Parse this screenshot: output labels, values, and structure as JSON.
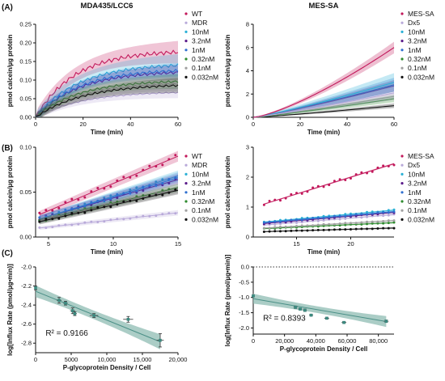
{
  "panel_labels": [
    "(A)",
    "(B)",
    "(C)"
  ],
  "colors": {
    "WT": "#c2185b",
    "MDR": "#b8a9d9",
    "10nM": "#2ab0d6",
    "3.2nM": "#5a1a8a",
    "1nM": "#2f6fcf",
    "0.32nM": "#2e8b2e",
    "0.1nM": "#a0a0a0",
    "0.032nM": "#111111",
    "MES-SA": "#c2185b",
    "Dx5": "#b8a9d9",
    "band": "#8fbcb3",
    "fitline": "#4a8f86",
    "marker": "#3c8a80"
  },
  "chart_data": [
    {
      "type": "line",
      "panel": "(A)",
      "title": "MDA435/LCC6",
      "xlabel": "Time (min)",
      "ylabel": "pmol calcein/µg protein",
      "xlim": [
        0,
        60
      ],
      "ylim": [
        0,
        0.25
      ],
      "xticks": [
        0,
        20,
        40,
        60
      ],
      "yticks": [
        0.0,
        0.05,
        0.1,
        0.15,
        0.2,
        0.25
      ],
      "ytick_labels": [
        "0.00",
        "0.05",
        "0.10",
        "0.15",
        "0.20",
        "0.25"
      ],
      "legend_position": "right",
      "series": [
        {
          "name": "WT",
          "color": "#c2185b",
          "ymax": 0.18,
          "k": 0.06,
          "band": 0.03
        },
        {
          "name": "MDR",
          "color": "#b8a9d9",
          "ymax": 0.07,
          "k": 0.05,
          "band": 0.015
        },
        {
          "name": "10nM",
          "color": "#2ab0d6",
          "ymax": 0.145,
          "k": 0.055,
          "band": 0.03
        },
        {
          "name": "3.2nM",
          "color": "#5a1a8a",
          "ymax": 0.125,
          "k": 0.055,
          "band": 0.02
        },
        {
          "name": "1nM",
          "color": "#2f6fcf",
          "ymax": 0.13,
          "k": 0.055,
          "band": 0.02
        },
        {
          "name": "0.32nM",
          "color": "#2e8b2e",
          "ymax": 0.1,
          "k": 0.055,
          "band": 0.02
        },
        {
          "name": "0.1nM",
          "color": "#a0a0a0",
          "ymax": 0.095,
          "k": 0.05,
          "band": 0.02
        },
        {
          "name": "0.032nM",
          "color": "#111111",
          "ymax": 0.09,
          "k": 0.05,
          "band": 0.02
        }
      ]
    },
    {
      "type": "line",
      "panel": "(A)",
      "title": "MES-SA",
      "xlabel": "Time (min)",
      "ylabel": "pmol calcein/µg protein",
      "xlim": [
        0,
        60
      ],
      "ylim": [
        0,
        8
      ],
      "xticks": [
        0,
        20,
        40,
        60
      ],
      "yticks": [
        0,
        2,
        4,
        6,
        8
      ],
      "ytick_labels": [
        "0",
        "2",
        "4",
        "6",
        "8"
      ],
      "legend_position": "right",
      "series": [
        {
          "name": "MES-SA",
          "color": "#c2185b",
          "end": 6.0,
          "p": 1.35,
          "band": 0.5
        },
        {
          "name": "Dx5",
          "color": "#b8a9d9",
          "end": 2.1,
          "p": 1.15,
          "band": 0.6
        },
        {
          "name": "10nM",
          "color": "#2ab0d6",
          "end": 3.0,
          "p": 1.15,
          "band": 0.8
        },
        {
          "name": "3.2nM",
          "color": "#5a1a8a",
          "end": 2.7,
          "p": 1.15,
          "band": 0.5
        },
        {
          "name": "1nM",
          "color": "#2f6fcf",
          "end": 2.8,
          "p": 1.15,
          "band": 0.6
        },
        {
          "name": "0.32nM",
          "color": "#2e8b2e",
          "end": 1.6,
          "p": 1.15,
          "band": 0.3
        },
        {
          "name": "0.1nM",
          "color": "#a0a0a0",
          "end": 1.8,
          "p": 1.15,
          "band": 0.3
        },
        {
          "name": "0.032nM",
          "color": "#111111",
          "end": 1.0,
          "p": 1.15,
          "band": 0.2
        }
      ]
    },
    {
      "type": "scatter",
      "panel": "(B)",
      "title": "",
      "xlabel": "Time (min)",
      "ylabel": "pmol calcein/µg protein",
      "xlim": [
        4,
        15
      ],
      "ylim": [
        0,
        0.1
      ],
      "xticks": [
        5,
        10,
        15
      ],
      "yticks": [
        0.0,
        0.05,
        0.1
      ],
      "ytick_labels": [
        "0.00",
        "0.05",
        "0.10"
      ],
      "legend_position": "right",
      "series": [
        {
          "name": "WT",
          "color": "#c2185b",
          "y0": 0.025,
          "y1": 0.09,
          "band": 0.004
        },
        {
          "name": "MDR",
          "color": "#b8a9d9",
          "y0": 0.01,
          "y1": 0.027,
          "band": 0.002
        },
        {
          "name": "10nM",
          "color": "#2ab0d6",
          "y0": 0.02,
          "y1": 0.068,
          "band": 0.004
        },
        {
          "name": "3.2nM",
          "color": "#5a1a8a",
          "y0": 0.02,
          "y1": 0.064,
          "band": 0.004
        },
        {
          "name": "1nM",
          "color": "#2f6fcf",
          "y0": 0.02,
          "y1": 0.066,
          "band": 0.004
        },
        {
          "name": "0.32nM",
          "color": "#2e8b2e",
          "y0": 0.018,
          "y1": 0.055,
          "band": 0.003
        },
        {
          "name": "0.1nM",
          "color": "#a0a0a0",
          "y0": 0.018,
          "y1": 0.053,
          "band": 0.003
        },
        {
          "name": "0.032nM",
          "color": "#111111",
          "y0": 0.017,
          "y1": 0.052,
          "band": 0.003
        }
      ]
    },
    {
      "type": "scatter",
      "panel": "(B)",
      "title": "",
      "xlabel": "Time (min)",
      "ylabel": "pmol calcein/µg protein",
      "xlim": [
        11,
        24
      ],
      "ylim": [
        0,
        3
      ],
      "xticks": [
        15,
        20
      ],
      "yticks": [
        0,
        1,
        2,
        3
      ],
      "ytick_labels": [
        "0",
        "1",
        "2",
        "3"
      ],
      "legend_position": "right",
      "series": [
        {
          "name": "MES-SA",
          "color": "#c2185b",
          "y0": 1.1,
          "y1": 2.45,
          "band": 0.02
        },
        {
          "name": "Dx5",
          "color": "#b8a9d9",
          "y0": 0.4,
          "y1": 0.75,
          "band": 0.02
        },
        {
          "name": "10nM",
          "color": "#2ab0d6",
          "y0": 0.5,
          "y1": 0.9,
          "band": 0.02
        },
        {
          "name": "3.2nM",
          "color": "#5a1a8a",
          "y0": 0.45,
          "y1": 0.82,
          "band": 0.02
        },
        {
          "name": "1nM",
          "color": "#2f6fcf",
          "y0": 0.48,
          "y1": 0.85,
          "band": 0.02
        },
        {
          "name": "0.32nM",
          "color": "#2e8b2e",
          "y0": 0.28,
          "y1": 0.48,
          "band": 0.02
        },
        {
          "name": "0.1nM",
          "color": "#a0a0a0",
          "y0": 0.3,
          "y1": 0.55,
          "band": 0.02
        },
        {
          "name": "0.032nM",
          "color": "#111111",
          "y0": 0.18,
          "y1": 0.3,
          "band": 0.02
        }
      ]
    },
    {
      "type": "scatter",
      "panel": "(C)",
      "title": "",
      "xlabel": "P-glycoprotein Density / Cell",
      "ylabel": "log[Influx Rate (pmol/µg•min)]",
      "xlim": [
        0,
        20000
      ],
      "ylim": [
        -2.9,
        -2.0
      ],
      "xticks": [
        0,
        5000,
        10000,
        15000,
        20000
      ],
      "xtick_labels": [
        "0",
        "5000",
        "10,000",
        "15,000",
        "20,000"
      ],
      "yticks": [
        -2.8,
        -2.6,
        -2.4,
        -2.2,
        -2.0
      ],
      "ytick_labels": [
        "-2.8",
        "-2.6",
        "-2.4",
        "-2.2",
        "-2.0"
      ],
      "annotation": "R² = 0.9166",
      "fit": {
        "intercept": -2.255,
        "slope": -3.03e-05
      },
      "points": [
        {
          "x": 0,
          "y": -2.22,
          "xerr": 150,
          "yerr": 0.02
        },
        {
          "x": 3300,
          "y": -2.35,
          "xerr": 350,
          "yerr": 0.03
        },
        {
          "x": 4200,
          "y": -2.38,
          "xerr": 300,
          "yerr": 0.02
        },
        {
          "x": 5200,
          "y": -2.46,
          "xerr": 350,
          "yerr": 0.03
        },
        {
          "x": 5500,
          "y": -2.49,
          "xerr": 300,
          "yerr": 0.02
        },
        {
          "x": 8200,
          "y": -2.51,
          "xerr": 600,
          "yerr": 0.02
        },
        {
          "x": 13000,
          "y": -2.55,
          "xerr": 700,
          "yerr": 0.03
        },
        {
          "x": 17500,
          "y": -2.77,
          "xerr": 500,
          "yerr": 0.07
        }
      ]
    },
    {
      "type": "scatter",
      "panel": "(C)",
      "title": "",
      "xlabel": "P-glycoprotein Density / Cell",
      "ylabel": "log[Influx Rate (pmol/µg•min)]",
      "xlim": [
        0,
        90000
      ],
      "ylim": [
        -2.2,
        0.0
      ],
      "xticks": [
        0,
        20000,
        40000,
        60000,
        80000
      ],
      "xtick_labels": [
        "0",
        "20,000",
        "40,000",
        "60,000",
        "80,000"
      ],
      "yticks": [
        -2.0,
        -1.5,
        -1.0,
        -0.5,
        0.0
      ],
      "ytick_labels": [
        "-2.0",
        "-1.5",
        "-1.0",
        "-0.5",
        "0.0"
      ],
      "reference_line": 0.0,
      "annotation": "R² = 0.8393",
      "fit": {
        "intercept": -1.04,
        "slope": -8.8e-06
      },
      "points": [
        {
          "x": 0,
          "y": -0.95,
          "xerr": 500,
          "yerr": 0.03
        },
        {
          "x": 27000,
          "y": -1.32,
          "xerr": 1200,
          "yerr": 0.04
        },
        {
          "x": 30000,
          "y": -1.38,
          "xerr": 1200,
          "yerr": 0.03
        },
        {
          "x": 33000,
          "y": -1.42,
          "xerr": 1200,
          "yerr": 0.04
        },
        {
          "x": 37000,
          "y": -1.58,
          "xerr": 1200,
          "yerr": 0.03
        },
        {
          "x": 47000,
          "y": -1.68,
          "xerr": 1500,
          "yerr": 0.03
        },
        {
          "x": 58000,
          "y": -1.82,
          "xerr": 1500,
          "yerr": 0.03
        },
        {
          "x": 85000,
          "y": -1.78,
          "xerr": 1500,
          "yerr": 0.04
        }
      ]
    }
  ]
}
